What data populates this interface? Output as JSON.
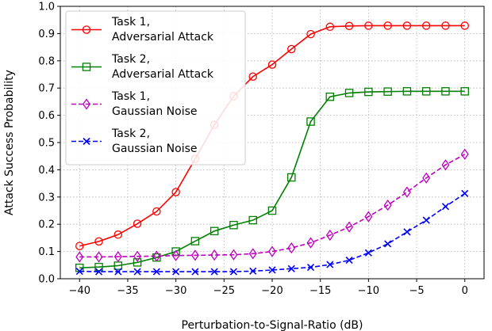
{
  "chart_data": {
    "type": "line",
    "xlabel": "Perturbation-to-Signal-Ratio (dB)",
    "ylabel": "Attack Success Probability",
    "xlim": [
      -42,
      2
    ],
    "ylim": [
      0,
      1.0
    ],
    "xticks": [
      -40,
      -35,
      -30,
      -25,
      -20,
      -15,
      -10,
      -5,
      0
    ],
    "xtick_labels": [
      "−40",
      "−35",
      "−30",
      "−25",
      "−20",
      "−15",
      "−10",
      "−5",
      "0"
    ],
    "yticks": [
      0.0,
      0.1,
      0.2,
      0.3,
      0.4,
      0.5,
      0.6,
      0.7,
      0.8,
      0.9,
      1.0
    ],
    "ytick_labels": [
      "0.0",
      "0.1",
      "0.2",
      "0.3",
      "0.4",
      "0.5",
      "0.6",
      "0.7",
      "0.8",
      "0.9",
      "1.0"
    ],
    "grid": true,
    "legend_position": "top-left",
    "x": [
      -40,
      -38,
      -36,
      -34,
      -32,
      -30,
      -28,
      -26,
      -24,
      -22,
      -20,
      -18,
      -16,
      -14,
      -12,
      -10,
      -8,
      -6,
      -4,
      -2,
      0
    ],
    "series": [
      {
        "name_lines": [
          "Task 1,",
          "Adversarial Attack"
        ],
        "color": "#ff0000",
        "marker": "circle",
        "dash": "solid",
        "values": [
          0.12,
          0.137,
          0.162,
          0.202,
          0.247,
          0.318,
          0.44,
          0.565,
          0.67,
          0.742,
          0.786,
          0.843,
          0.898,
          0.925,
          0.928,
          0.929,
          0.929,
          0.929,
          0.929,
          0.929,
          0.929
        ]
      },
      {
        "name_lines": [
          "Task 2,",
          "Adversarial Attack"
        ],
        "color": "#008000",
        "marker": "square",
        "dash": "solid",
        "values": [
          0.04,
          0.043,
          0.048,
          0.06,
          0.078,
          0.1,
          0.138,
          0.175,
          0.197,
          0.215,
          0.25,
          0.372,
          0.577,
          0.668,
          0.682,
          0.686,
          0.687,
          0.688,
          0.688,
          0.688,
          0.688
        ]
      },
      {
        "name_lines": [
          "Task 1,",
          "Gaussian Noise"
        ],
        "color": "#c000c0",
        "marker": "diamond",
        "dash": "dashed",
        "values": [
          0.08,
          0.08,
          0.081,
          0.082,
          0.083,
          0.085,
          0.086,
          0.087,
          0.088,
          0.092,
          0.1,
          0.113,
          0.132,
          0.16,
          0.19,
          0.228,
          0.27,
          0.318,
          0.37,
          0.418,
          0.457
        ]
      },
      {
        "name_lines": [
          "Task 2,",
          "Gaussian Noise"
        ],
        "color": "#0000ff",
        "marker": "x",
        "dash": "dashed",
        "values": [
          0.027,
          0.026,
          0.026,
          0.026,
          0.026,
          0.026,
          0.026,
          0.026,
          0.026,
          0.028,
          0.032,
          0.037,
          0.042,
          0.052,
          0.068,
          0.095,
          0.128,
          0.172,
          0.215,
          0.265,
          0.313
        ]
      }
    ]
  }
}
